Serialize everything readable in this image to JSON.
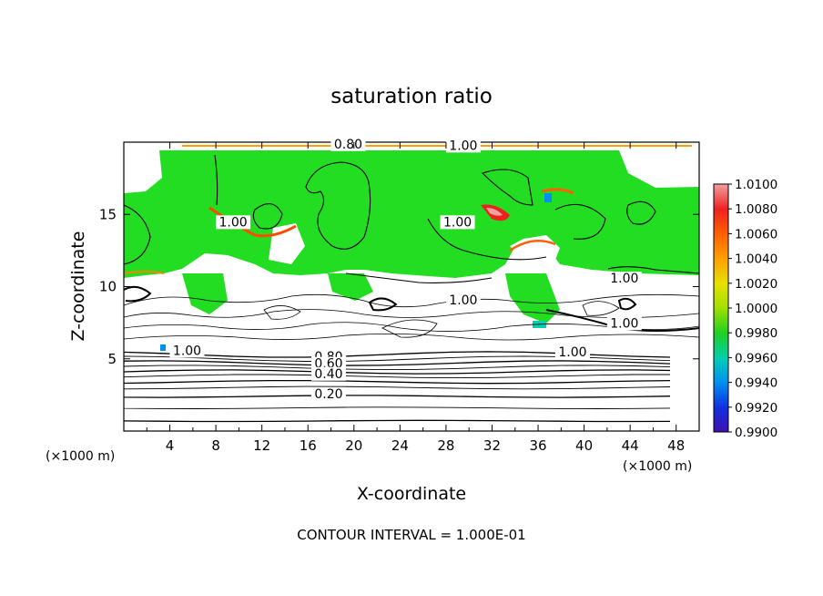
{
  "chart_data": {
    "type": "heatmap",
    "title": "saturation ratio",
    "xlabel": "X-coordinate",
    "ylabel": "Z-coordinate",
    "x_unit": "(×1000 m)",
    "x_unit_right": "(×1000 m)",
    "xlim": [
      0,
      50
    ],
    "ylim": [
      0,
      20
    ],
    "x_ticks": [
      4,
      8,
      12,
      16,
      20,
      24,
      28,
      32,
      36,
      40,
      44,
      48
    ],
    "y_ticks": [
      5,
      10,
      15
    ],
    "footer": "CONTOUR INTERVAL = 1.000E-01",
    "colorbar": {
      "labels": [
        "1.0100",
        "1.0080",
        "1.0060",
        "1.0040",
        "1.0020",
        "1.0000",
        "0.9980",
        "0.9960",
        "0.9940",
        "0.9920",
        "0.9900"
      ],
      "colors": [
        "#f4a0a0",
        "#ee2020",
        "#ff6000",
        "#ffa000",
        "#e8e000",
        "#a0e000",
        "#20d020",
        "#00d0b0",
        "#0090f0",
        "#1030e0",
        "#4010b0"
      ]
    },
    "contour_labels": [
      {
        "text": "0.80",
        "x": 19.5,
        "z": 19.7
      },
      {
        "text": "1.00",
        "x": 29.5,
        "z": 19.6
      },
      {
        "text": "1.00",
        "x": 9.5,
        "z": 14.3
      },
      {
        "text": "1.00",
        "x": 29.0,
        "z": 14.3
      },
      {
        "text": "1.00",
        "x": 43.5,
        "z": 10.4
      },
      {
        "text": "1.00",
        "x": 29.5,
        "z": 8.9
      },
      {
        "text": "1.00",
        "x": 43.5,
        "z": 7.3
      },
      {
        "text": "1.00",
        "x": 39.0,
        "z": 5.3
      },
      {
        "text": "1.00",
        "x": 5.5,
        "z": 5.4
      },
      {
        "text": "0.80",
        "x": 17.8,
        "z": 5.0
      },
      {
        "text": "0.60",
        "x": 17.8,
        "z": 4.5
      },
      {
        "text": "0.40",
        "x": 17.8,
        "z": 3.8
      },
      {
        "text": "0.20",
        "x": 17.8,
        "z": 2.4
      }
    ],
    "stratiform_levels_z": [
      0.7,
      1.6,
      2.4,
      3.0,
      3.4,
      3.8,
      4.1,
      4.4,
      4.7,
      5.0,
      5.3
    ]
  }
}
